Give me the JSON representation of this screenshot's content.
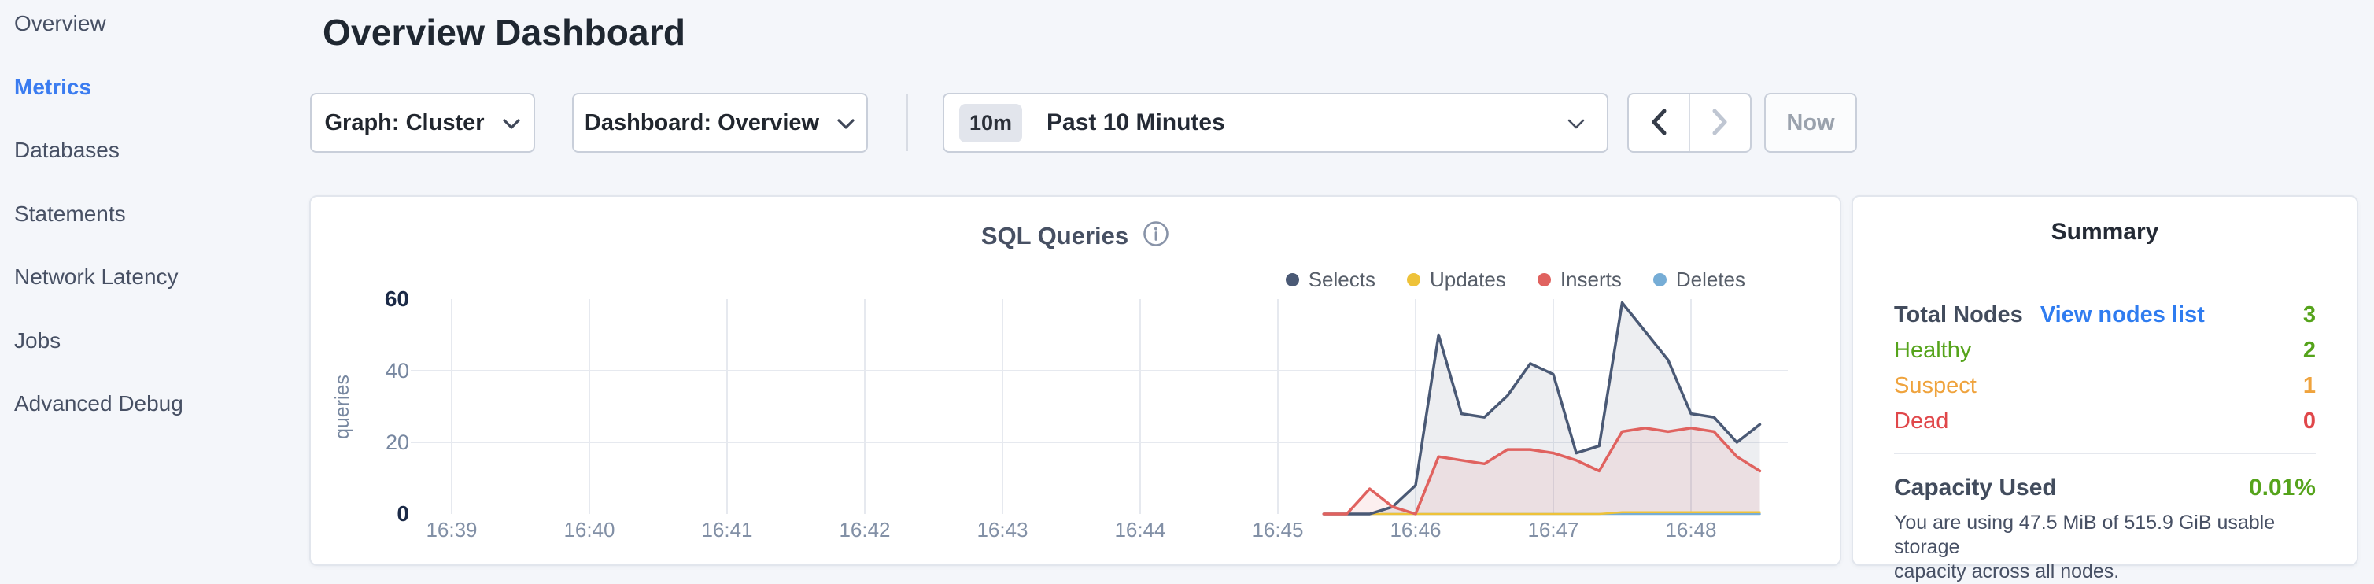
{
  "sidebar": {
    "items": [
      {
        "label": "Overview",
        "active": false
      },
      {
        "label": "Metrics",
        "active": true
      },
      {
        "label": "Databases",
        "active": false
      },
      {
        "label": "Statements",
        "active": false
      },
      {
        "label": "Network Latency",
        "active": false
      },
      {
        "label": "Jobs",
        "active": false
      },
      {
        "label": "Advanced Debug",
        "active": false
      }
    ]
  },
  "header": {
    "title": "Overview Dashboard"
  },
  "controls": {
    "graph_dropdown": {
      "label": "Graph: Cluster",
      "icon": "chevron-down-icon"
    },
    "dashboard_dropdown": {
      "label": "Dashboard: Overview",
      "icon": "chevron-down-icon"
    },
    "time_selector": {
      "badge": "10m",
      "label": "Past 10 Minutes",
      "icon": "chevron-down-icon"
    },
    "prev_icon": "chevron-left-icon",
    "next_icon": "chevron-right-icon",
    "now_label": "Now"
  },
  "chart": {
    "title": "SQL Queries",
    "info_icon": "info-icon"
  },
  "chart_data": {
    "type": "line",
    "title": "SQL Queries",
    "ylabel": "queries",
    "xlabel": "",
    "grid": true,
    "legend_position": "top-right",
    "ylim": [
      0,
      60
    ],
    "yticks": [
      0,
      20,
      40,
      60
    ],
    "xticks": [
      "16:39",
      "16:40",
      "16:41",
      "16:42",
      "16:43",
      "16:44",
      "16:45",
      "16:46",
      "16:47",
      "16:48"
    ],
    "x": [
      "16:45:20",
      "16:45:30",
      "16:45:40",
      "16:45:50",
      "16:46:00",
      "16:46:10",
      "16:46:20",
      "16:46:30",
      "16:46:40",
      "16:46:50",
      "16:47:00",
      "16:47:10",
      "16:47:20",
      "16:47:30",
      "16:47:40",
      "16:47:50",
      "16:48:00",
      "16:48:10",
      "16:48:20",
      "16:48:30"
    ],
    "series": [
      {
        "name": "Selects",
        "color": "#4a5975",
        "fill": "rgba(74,89,117,0.10)",
        "values": [
          0,
          0,
          0,
          2,
          8,
          50,
          28,
          27,
          33,
          42,
          39,
          17,
          19,
          59,
          51,
          43,
          28,
          27,
          20,
          25
        ]
      },
      {
        "name": "Updates",
        "color": "#eec239",
        "fill": null,
        "values": [
          0,
          0,
          0,
          0,
          0,
          0,
          0,
          0,
          0,
          0,
          0,
          0,
          0,
          0.5,
          0.5,
          0.5,
          0.5,
          0.5,
          0.5,
          0.5
        ]
      },
      {
        "name": "Inserts",
        "color": "#e0625f",
        "fill": "rgba(224,98,95,0.10)",
        "values": [
          0,
          0,
          7,
          2,
          0,
          16,
          15,
          14,
          18,
          18,
          17,
          15,
          12,
          23,
          24,
          23,
          24,
          23,
          16,
          12
        ]
      },
      {
        "name": "Deletes",
        "color": "#76add6",
        "fill": null,
        "values": [
          0,
          0,
          0,
          0,
          0,
          0,
          0,
          0,
          0,
          0,
          0,
          0,
          0,
          0,
          0,
          0,
          0,
          0,
          0,
          0
        ]
      }
    ]
  },
  "summary": {
    "title": "Summary",
    "rows": [
      {
        "label": "Total Nodes",
        "label_color": "#424c5d",
        "bold": true,
        "link": "View nodes list",
        "value": "3",
        "color": "#55a31b"
      },
      {
        "label": "Healthy",
        "label_color": "#55a31b",
        "bold": false,
        "link": null,
        "value": "2",
        "color": "#55a31b"
      },
      {
        "label": "Suspect",
        "label_color": "#efa33d",
        "bold": false,
        "link": null,
        "value": "1",
        "color": "#efa33d"
      },
      {
        "label": "Dead",
        "label_color": "#e0474a",
        "bold": false,
        "link": null,
        "value": "0",
        "color": "#e0474a"
      }
    ],
    "capacity": {
      "label": "Capacity Used",
      "value": "0.01%",
      "value_color": "#55a31b",
      "description": "You are using 47.5 MiB of 515.9 GiB usable storage capacity across all nodes.",
      "description_lines": [
        "You are using 47.5 MiB of 515.9 GiB usable storage",
        "capacity across all nodes."
      ]
    }
  },
  "colors": {
    "page_background": "#f4f6fa",
    "active_nav_blue": "#3b7cf0",
    "link_blue": "#2f7cf0",
    "status_green": "#55a31b",
    "status_orange": "#efa33d",
    "status_red": "#e0474a",
    "axis_dark": "#1b2a47",
    "axis_light": "#7787a0",
    "gridline": "#e6e9ef"
  }
}
